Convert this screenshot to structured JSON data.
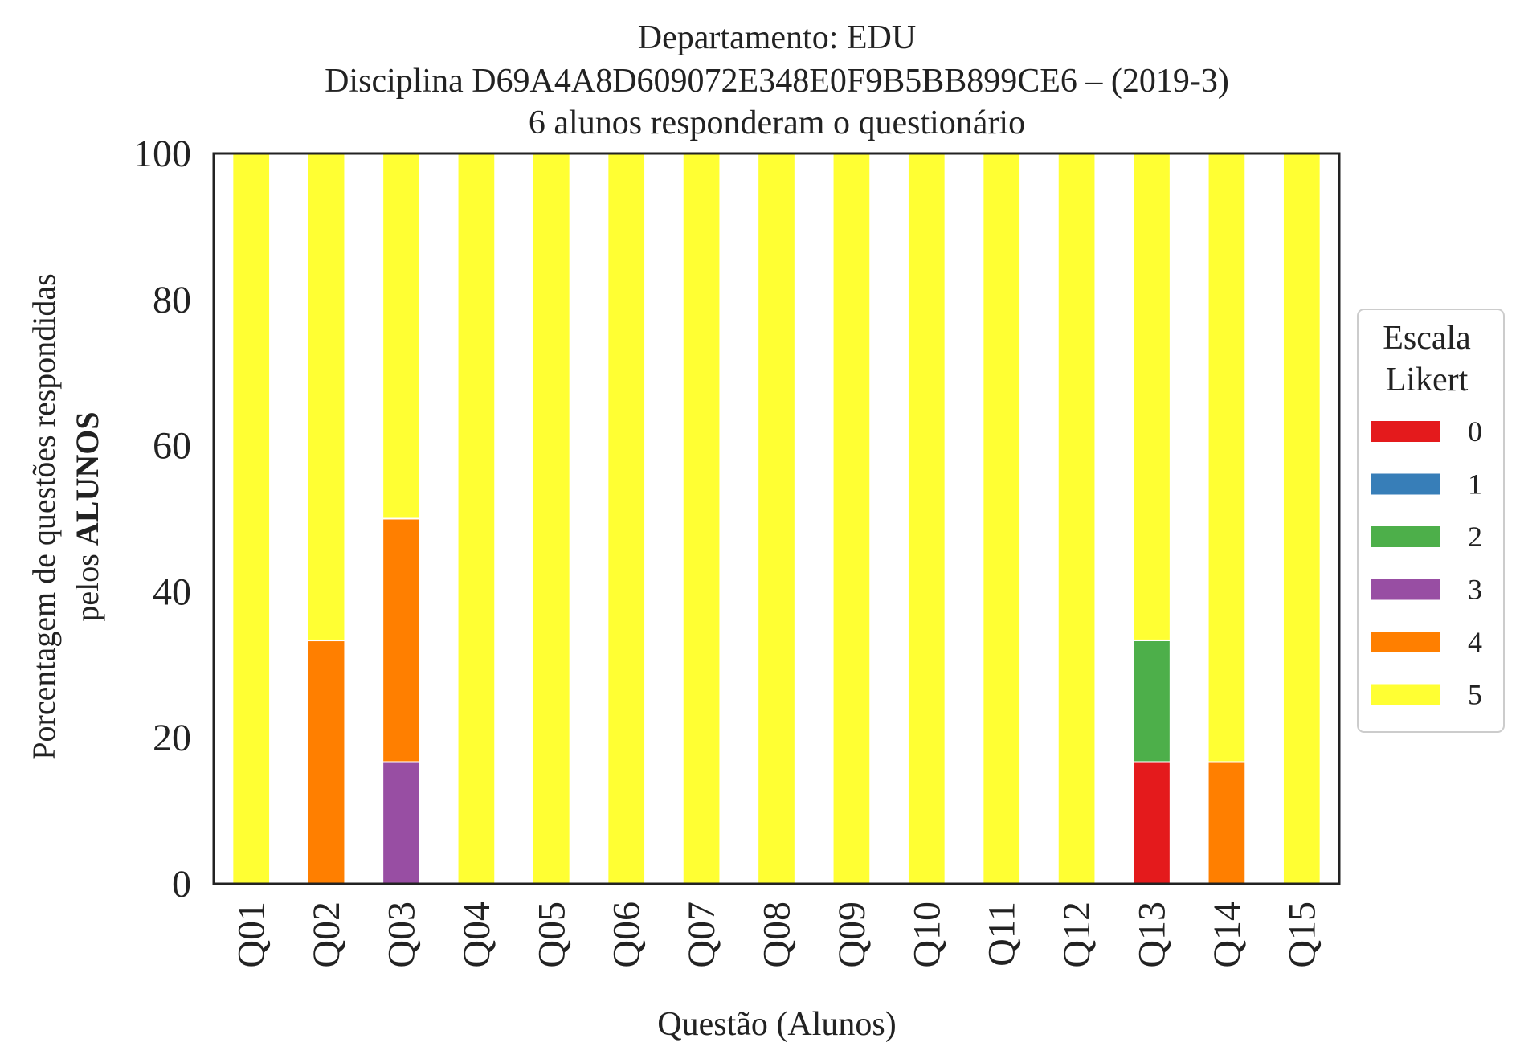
{
  "chart_data": {
    "type": "bar",
    "stacked": true,
    "title_lines": [
      "Departamento: EDU",
      "Disciplina D69A4A8D609072E348E0F9B5BB899CE6 – (2019-3)",
      "6 alunos responderam o questionário"
    ],
    "xlabel": "Questão (Alunos)",
    "ylabel_line1": "Porcentagem de questões respondidas",
    "ylabel_line2_prefix": "pelos ",
    "ylabel_line2_bold": "ALUNOS",
    "ylim": [
      0,
      100
    ],
    "yticks": [
      "0",
      "20",
      "40",
      "60",
      "80",
      "100"
    ],
    "categories": [
      "Q01",
      "Q02",
      "Q03",
      "Q04",
      "Q05",
      "Q06",
      "Q07",
      "Q08",
      "Q09",
      "Q10",
      "Q11",
      "Q12",
      "Q13",
      "Q14",
      "Q15"
    ],
    "legend": {
      "title_line1": "Escala",
      "title_line2": "Likert",
      "placement": "right"
    },
    "series": [
      {
        "name": "0",
        "color": "#e41a1c",
        "values": [
          0,
          0,
          0,
          0,
          0,
          0,
          0,
          0,
          0,
          0,
          0,
          0,
          16.67,
          0,
          0
        ]
      },
      {
        "name": "1",
        "color": "#377eb8",
        "values": [
          0,
          0,
          0,
          0,
          0,
          0,
          0,
          0,
          0,
          0,
          0,
          0,
          0,
          0,
          0
        ]
      },
      {
        "name": "2",
        "color": "#4daf4a",
        "values": [
          0,
          0,
          0,
          0,
          0,
          0,
          0,
          0,
          0,
          0,
          0,
          0,
          16.67,
          0,
          0
        ]
      },
      {
        "name": "3",
        "color": "#984ea3",
        "values": [
          0,
          0,
          16.67,
          0,
          0,
          0,
          0,
          0,
          0,
          0,
          0,
          0,
          0,
          0,
          0
        ]
      },
      {
        "name": "4",
        "color": "#ff7f00",
        "values": [
          0,
          33.33,
          33.33,
          0,
          0,
          0,
          0,
          0,
          0,
          0,
          0,
          0,
          0,
          16.67,
          0
        ]
      },
      {
        "name": "5",
        "color": "#ffff33",
        "values": [
          100,
          66.67,
          50,
          100,
          100,
          100,
          100,
          100,
          100,
          100,
          100,
          100,
          66.67,
          83.33,
          100
        ]
      }
    ]
  }
}
